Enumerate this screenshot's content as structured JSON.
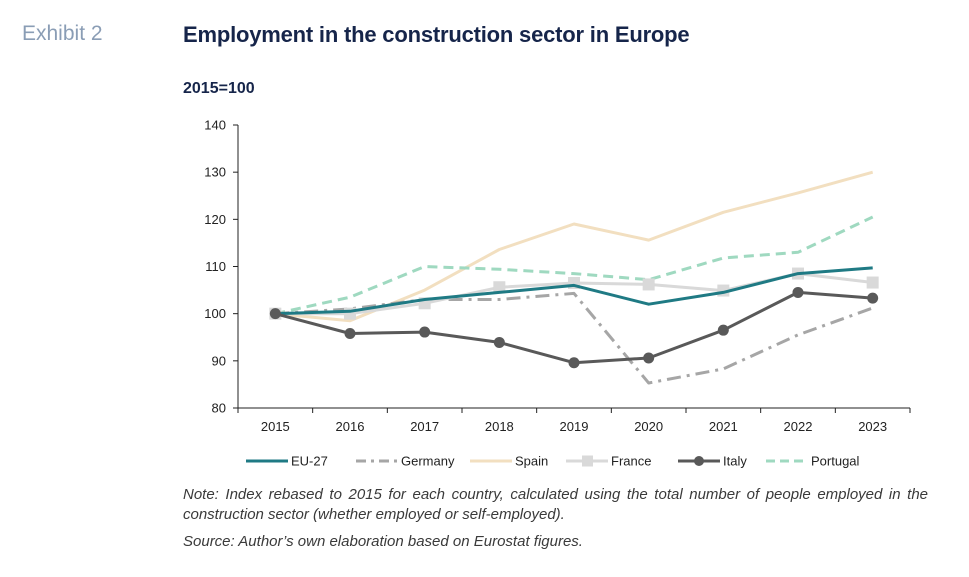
{
  "header": {
    "exhibit_label": "Exhibit 2",
    "title": "Employment in the construction sector in Europe"
  },
  "footer": {
    "note": "Note: Index rebased to 2015 for each country, calculated using the total number of people employed in the construction sector (whether employed or self-employed).",
    "source": "Source: Author’s own elaboration based on Eurostat figures."
  },
  "chart_data": {
    "type": "line",
    "title": "Employment in the construction sector in Europe",
    "ylabel": "2015=100",
    "xlabel": "",
    "categories": [
      "2015",
      "2016",
      "2017",
      "2018",
      "2019",
      "2020",
      "2021",
      "2022",
      "2023"
    ],
    "ylim": [
      80,
      140
    ],
    "yticks": [
      80,
      90,
      100,
      110,
      120,
      130,
      140
    ],
    "grid": false,
    "legend_position": "bottom",
    "series": [
      {
        "name": "EU-27",
        "color": "#1f7a84",
        "style": "solid",
        "marker": "none",
        "values": [
          100,
          100.5,
          103,
          104.5,
          106,
          102,
          104.5,
          108.5,
          109.7
        ]
      },
      {
        "name": "Germany",
        "color": "#a6a6a6",
        "style": "dashdot",
        "marker": "none",
        "values": [
          100,
          101,
          103,
          103,
          104.3,
          85.3,
          88.3,
          95.5,
          101.2
        ]
      },
      {
        "name": "Spain",
        "color": "#f2dfc0",
        "style": "solid",
        "marker": "none",
        "values": [
          100,
          98.5,
          105,
          113.6,
          119,
          115.6,
          121.5,
          125.6,
          130
        ]
      },
      {
        "name": "France",
        "color": "#d9d9d9",
        "style": "solid",
        "marker": "square",
        "values": [
          100,
          100,
          102.2,
          105.6,
          106.5,
          106.2,
          104.9,
          108.5,
          106.6
        ]
      },
      {
        "name": "Italy",
        "color": "#595959",
        "style": "solid",
        "marker": "circle",
        "values": [
          100,
          95.8,
          96.1,
          93.9,
          89.6,
          90.6,
          96.5,
          104.5,
          103.3
        ]
      },
      {
        "name": "Portugal",
        "color": "#9fd9c0",
        "style": "dashed",
        "marker": "none",
        "values": [
          100,
          103.5,
          110,
          109.4,
          108.5,
          107.2,
          111.8,
          113,
          120.5
        ]
      }
    ]
  }
}
